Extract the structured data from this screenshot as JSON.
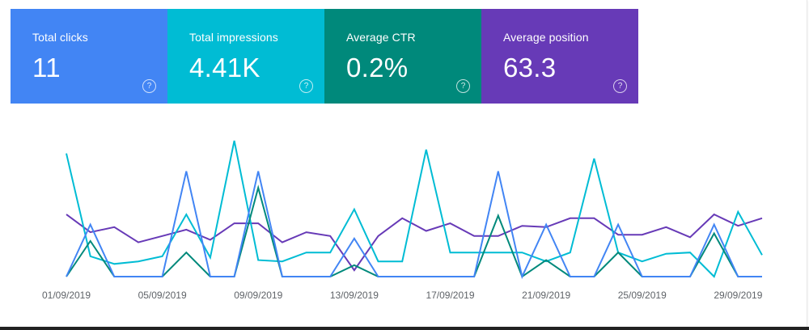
{
  "metrics": [
    {
      "label": "Total clicks",
      "value": "11",
      "color": "#4285f4",
      "help": "?"
    },
    {
      "label": "Total impressions",
      "value": "4.41K",
      "color": "#00bcd4",
      "help": "?"
    },
    {
      "label": "Average CTR",
      "value": "0.2%",
      "color": "#00897b",
      "help": "?"
    },
    {
      "label": "Average position",
      "value": "63.3",
      "color": "#673ab7",
      "help": "?"
    }
  ],
  "chart_data": {
    "type": "line",
    "x": [
      "01/09/2019",
      "02/09/2019",
      "03/09/2019",
      "04/09/2019",
      "05/09/2019",
      "06/09/2019",
      "07/09/2019",
      "08/09/2019",
      "09/09/2019",
      "10/09/2019",
      "11/09/2019",
      "12/09/2019",
      "13/09/2019",
      "14/09/2019",
      "15/09/2019",
      "16/09/2019",
      "17/09/2019",
      "18/09/2019",
      "19/09/2019",
      "20/09/2019",
      "21/09/2019",
      "22/09/2019",
      "23/09/2019",
      "24/09/2019",
      "25/09/2019",
      "26/09/2019",
      "27/09/2019",
      "28/09/2019",
      "29/09/2019",
      "30/09/2019"
    ],
    "tick_labels": [
      "01/09/2019",
      "05/09/2019",
      "09/09/2019",
      "13/09/2019",
      "17/09/2019",
      "21/09/2019",
      "25/09/2019",
      "29/09/2019"
    ],
    "tick_indices": [
      0,
      4,
      8,
      12,
      16,
      20,
      24,
      28
    ],
    "ylim": [
      0,
      100
    ],
    "series": [
      {
        "name": "Total clicks",
        "color": "#4285f4",
        "values": [
          0,
          41,
          0,
          0,
          0,
          83,
          0,
          0,
          83,
          0,
          0,
          0,
          30,
          0,
          0,
          0,
          0,
          0,
          83,
          0,
          41,
          0,
          0,
          41,
          0,
          0,
          0,
          41,
          0,
          0
        ]
      },
      {
        "name": "Total impressions",
        "color": "#00bcd4",
        "values": [
          97,
          16,
          10,
          12,
          16,
          49,
          15,
          107,
          13,
          12,
          19,
          19,
          53,
          12,
          12,
          100,
          19,
          19,
          19,
          19,
          12,
          19,
          93,
          19,
          12,
          18,
          19,
          0,
          51,
          17
        ]
      },
      {
        "name": "Average CTR",
        "color": "#00897b",
        "values": [
          0,
          28,
          0,
          0,
          0,
          19,
          0,
          0,
          70,
          0,
          0,
          0,
          9,
          0,
          0,
          0,
          0,
          0,
          48,
          0,
          13,
          0,
          0,
          19,
          0,
          0,
          0,
          34,
          0,
          0
        ]
      },
      {
        "name": "Average position",
        "color": "#673ab7",
        "values": [
          49,
          35,
          39,
          27,
          32,
          37,
          29,
          42,
          42,
          27,
          35,
          32,
          5,
          32,
          46,
          36,
          42,
          32,
          32,
          40,
          39,
          46,
          46,
          33,
          33,
          39,
          31,
          49,
          40,
          46
        ]
      }
    ]
  }
}
